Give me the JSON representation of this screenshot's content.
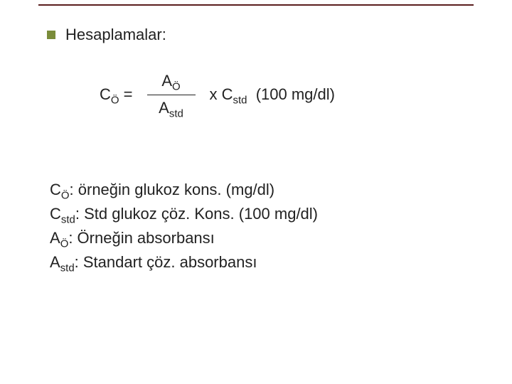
{
  "colors": {
    "rule": "#5a1e1e",
    "bullet": "#7a8c3a",
    "text": "#222222",
    "background": "#ffffff"
  },
  "typography": {
    "font_family": "Arial",
    "base_fontsize_pt": 17,
    "sub_scale": 0.68
  },
  "header": {
    "bullet_label": "Hesaplamalar:"
  },
  "formula": {
    "lhs_base": "C",
    "lhs_sub": "Ö",
    "eq": " =",
    "numer_base": "A",
    "numer_sub": "Ö",
    "denom_base": "A",
    "denom_sub": "std",
    "rhs_prefix": "x C",
    "rhs_sub": "std",
    "rhs_suffix": "(100 mg/dl)"
  },
  "definitions": {
    "line1": {
      "sym_base": "C",
      "sym_sub": "Ö",
      "text": ": örneğin glukoz kons. (mg/dl)"
    },
    "line2": {
      "sym_base": "C",
      "sym_sub": "std",
      "text": ": Std glukoz çöz. Kons. (100 mg/dl)"
    },
    "line3": {
      "sym_base": "A",
      "sym_sub": "Ö",
      "text": ": Örneğin absorbansı"
    },
    "line4": {
      "sym_base": "A",
      "sym_sub": "std",
      "text": ": Standart çöz. absorbansı"
    }
  }
}
